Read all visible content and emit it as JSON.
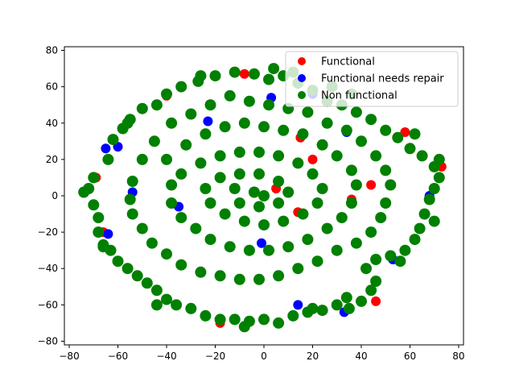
{
  "chart_data": {
    "type": "scatter",
    "title": "",
    "xlabel": "",
    "ylabel": "",
    "xlim": [
      -82,
      82
    ],
    "ylim": [
      -82,
      82
    ],
    "xticks": [
      "−80",
      "−60",
      "−40",
      "−20",
      "0",
      "20",
      "40",
      "60",
      "80"
    ],
    "yticks": [
      "−80",
      "−60",
      "−40",
      "−20",
      "0",
      "20",
      "40",
      "60",
      "80"
    ],
    "legend_position": "top-right",
    "series": [
      {
        "name": "Functional",
        "color": "#ff0000",
        "points": [
          [
            -69,
            10
          ],
          [
            15,
            32
          ],
          [
            73,
            16
          ],
          [
            14,
            -9
          ],
          [
            -66,
            -20
          ],
          [
            44,
            6
          ],
          [
            -62,
            31
          ],
          [
            20,
            20
          ],
          [
            -8,
            67
          ],
          [
            36,
            -2
          ],
          [
            -18,
            -70
          ],
          [
            46,
            -58
          ],
          [
            5,
            4
          ],
          [
            -40,
            55
          ],
          [
            58,
            35
          ]
        ]
      },
      {
        "name": "Functional needs repair",
        "color": "#0000ff",
        "points": [
          [
            -64,
            -21
          ],
          [
            -54,
            2
          ],
          [
            -60,
            27
          ],
          [
            3,
            54
          ],
          [
            33,
            -64
          ],
          [
            14,
            -60
          ],
          [
            -65,
            26
          ],
          [
            68,
            0
          ],
          [
            -23,
            41
          ],
          [
            34,
            35
          ],
          [
            -1,
            -26
          ],
          [
            46,
            -47
          ],
          [
            20,
            56
          ],
          [
            -35,
            -6
          ],
          [
            53,
            -35
          ]
        ]
      },
      {
        "name": "Non functional",
        "color": "#008000",
        "points": [
          [
            -70,
            10
          ],
          [
            -72,
            4
          ],
          [
            -70,
            -5
          ],
          [
            -68,
            -12
          ],
          [
            -68,
            -20
          ],
          [
            -66,
            -27
          ],
          [
            -64,
            20
          ],
          [
            -62,
            31
          ],
          [
            -58,
            37
          ],
          [
            -55,
            42
          ],
          [
            -50,
            48
          ],
          [
            -44,
            50
          ],
          [
            -40,
            56
          ],
          [
            -34,
            60
          ],
          [
            -27,
            63
          ],
          [
            -20,
            66
          ],
          [
            -12,
            68
          ],
          [
            -4,
            67
          ],
          [
            2,
            64
          ],
          [
            8,
            66
          ],
          [
            14,
            62
          ],
          [
            20,
            58
          ],
          [
            26,
            52
          ],
          [
            32,
            50
          ],
          [
            38,
            46
          ],
          [
            44,
            42
          ],
          [
            50,
            36
          ],
          [
            55,
            32
          ],
          [
            60,
            26
          ],
          [
            65,
            22
          ],
          [
            70,
            16
          ],
          [
            72,
            10
          ],
          [
            70,
            4
          ],
          [
            68,
            -2
          ],
          [
            66,
            -10
          ],
          [
            64,
            -18
          ],
          [
            62,
            -24
          ],
          [
            58,
            -30
          ],
          [
            52,
            -33
          ],
          [
            46,
            -35
          ],
          [
            42,
            -40
          ],
          [
            46,
            -47
          ],
          [
            44,
            -52
          ],
          [
            40,
            -58
          ],
          [
            35,
            -62
          ],
          [
            30,
            -60
          ],
          [
            24,
            -63
          ],
          [
            18,
            -64
          ],
          [
            12,
            -66
          ],
          [
            6,
            -70
          ],
          [
            0,
            -68
          ],
          [
            -6,
            -69
          ],
          [
            -12,
            -68
          ],
          [
            -18,
            -68
          ],
          [
            -24,
            -66
          ],
          [
            -30,
            -62
          ],
          [
            -36,
            -60
          ],
          [
            -40,
            -57
          ],
          [
            -44,
            -52
          ],
          [
            -48,
            -48
          ],
          [
            -52,
            -44
          ],
          [
            -56,
            -40
          ],
          [
            -60,
            -36
          ],
          [
            -63,
            -30
          ],
          [
            -50,
            20
          ],
          [
            -45,
            30
          ],
          [
            -38,
            40
          ],
          [
            -30,
            45
          ],
          [
            -22,
            50
          ],
          [
            -14,
            55
          ],
          [
            -6,
            52
          ],
          [
            2,
            50
          ],
          [
            10,
            48
          ],
          [
            18,
            46
          ],
          [
            26,
            40
          ],
          [
            34,
            36
          ],
          [
            40,
            30
          ],
          [
            46,
            22
          ],
          [
            50,
            14
          ],
          [
            52,
            6
          ],
          [
            50,
            -4
          ],
          [
            48,
            -12
          ],
          [
            44,
            -20
          ],
          [
            38,
            -26
          ],
          [
            30,
            -30
          ],
          [
            22,
            -36
          ],
          [
            14,
            -40
          ],
          [
            6,
            -44
          ],
          [
            -2,
            -46
          ],
          [
            -10,
            -46
          ],
          [
            -18,
            -44
          ],
          [
            -26,
            -42
          ],
          [
            -34,
            -38
          ],
          [
            -40,
            -32
          ],
          [
            -46,
            -26
          ],
          [
            -50,
            -18
          ],
          [
            -54,
            -10
          ],
          [
            -55,
            -2
          ],
          [
            -54,
            8
          ],
          [
            -40,
            20
          ],
          [
            -32,
            28
          ],
          [
            -24,
            34
          ],
          [
            -16,
            38
          ],
          [
            -8,
            40
          ],
          [
            0,
            38
          ],
          [
            8,
            36
          ],
          [
            16,
            34
          ],
          [
            24,
            28
          ],
          [
            30,
            22
          ],
          [
            36,
            14
          ],
          [
            38,
            6
          ],
          [
            36,
            -4
          ],
          [
            32,
            -12
          ],
          [
            26,
            -18
          ],
          [
            18,
            -24
          ],
          [
            10,
            -28
          ],
          [
            2,
            -30
          ],
          [
            -6,
            -30
          ],
          [
            -14,
            -28
          ],
          [
            -22,
            -24
          ],
          [
            -28,
            -18
          ],
          [
            -34,
            -12
          ],
          [
            -38,
            -4
          ],
          [
            -38,
            6
          ],
          [
            -34,
            12
          ],
          [
            -26,
            18
          ],
          [
            -18,
            22
          ],
          [
            -10,
            24
          ],
          [
            -2,
            24
          ],
          [
            6,
            22
          ],
          [
            14,
            18
          ],
          [
            20,
            12
          ],
          [
            24,
            4
          ],
          [
            22,
            -4
          ],
          [
            16,
            -10
          ],
          [
            8,
            -14
          ],
          [
            0,
            -16
          ],
          [
            -8,
            -14
          ],
          [
            -16,
            -10
          ],
          [
            -22,
            -4
          ],
          [
            -24,
            4
          ],
          [
            -18,
            10
          ],
          [
            -10,
            12
          ],
          [
            -2,
            12
          ],
          [
            6,
            8
          ],
          [
            10,
            2
          ],
          [
            6,
            -4
          ],
          [
            -2,
            -6
          ],
          [
            -10,
            -4
          ],
          [
            -12,
            4
          ],
          [
            -4,
            2
          ],
          [
            0,
            0
          ],
          [
            4,
            70
          ],
          [
            12,
            68
          ],
          [
            -26,
            66
          ],
          [
            62,
            34
          ],
          [
            72,
            20
          ],
          [
            70,
            -14
          ],
          [
            56,
            -36
          ],
          [
            -56,
            40
          ],
          [
            -66,
            -28
          ],
          [
            -74,
            2
          ],
          [
            28,
            60
          ],
          [
            36,
            56
          ],
          [
            -44,
            -60
          ],
          [
            -8,
            -72
          ],
          [
            20,
            -62
          ],
          [
            34,
            -56
          ]
        ]
      }
    ]
  },
  "legend": {
    "items": [
      {
        "label": "Functional",
        "color": "#ff0000"
      },
      {
        "label": "Functional needs repair",
        "color": "#0000ff"
      },
      {
        "label": "Non functional",
        "color": "#008000"
      }
    ]
  }
}
